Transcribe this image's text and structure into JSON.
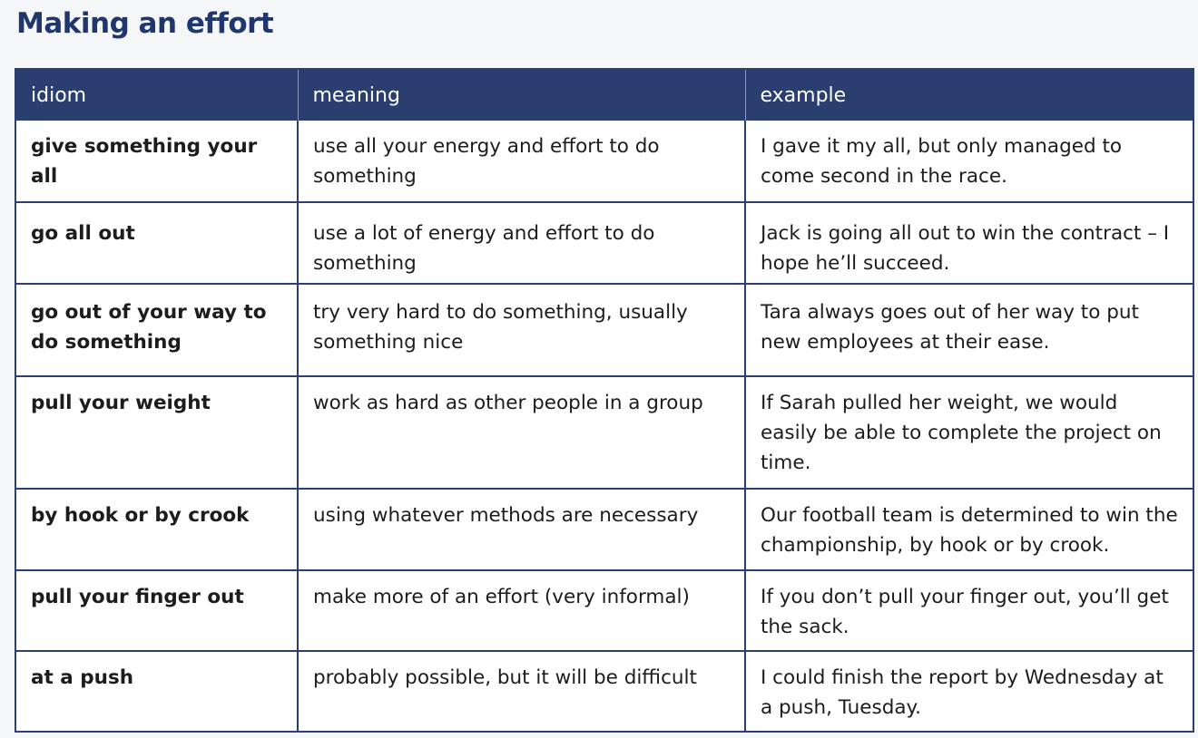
{
  "title": "Making an effort",
  "table": {
    "headers": [
      "idiom",
      "meaning",
      "example"
    ],
    "rows": [
      {
        "idiom": "give something your all",
        "meaning": "use all your energy and effort to do something",
        "example": "I gave it my all, but only managed to come second in the race."
      },
      {
        "idiom": "go all out",
        "meaning": "use a lot of energy and effort to do something",
        "example": "Jack is going all out to win the contract – I hope he’ll succeed."
      },
      {
        "idiom": "go out of your way to do something",
        "meaning": "try very hard to do something, usually something nice",
        "example": "Tara always goes out of her way to put new employees at their ease."
      },
      {
        "idiom": "pull your weight",
        "meaning": "work as hard as other people in a group",
        "example": "If Sarah pulled her weight, we would easily be able to complete the project on time."
      },
      {
        "idiom": "by hook or by crook",
        "meaning": "using whatever methods are necessary",
        "example": "Our football team is determined to win the championship, by hook or by crook."
      },
      {
        "idiom": "pull your finger out",
        "meaning": "make more of an effort (very informal)",
        "example": "If you don’t pull your finger out, you’ll get the sack."
      },
      {
        "idiom": "at a push",
        "meaning": "probably possible, but it will be difficult",
        "example": "I could finish the report by Wednesday at a push, Tuesday."
      }
    ]
  }
}
